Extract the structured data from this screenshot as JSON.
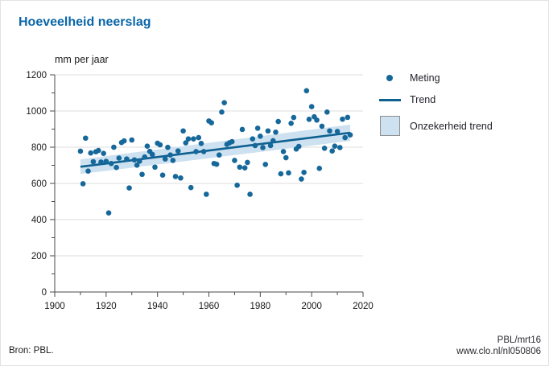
{
  "title": "Hoeveelheid neerslag",
  "legend": {
    "items": [
      {
        "label": "Meting",
        "marker": "dot"
      },
      {
        "label": "Trend",
        "marker": "line"
      },
      {
        "label": "Onzekerheid trend",
        "marker": "band"
      }
    ]
  },
  "footer": {
    "source": "Bron: PBL.",
    "credit_line1": "PBL/mrt16",
    "credit_line2": "www.clo.nl/nl050806"
  },
  "colors": {
    "title": "#0a66a8",
    "point": "#16689b",
    "trend": "#0e6091",
    "band": "#cde1f0",
    "grid": "#dcdcdc",
    "axis": "#4a4a4a",
    "tick_text": "#1a1a1a"
  },
  "chart_data": {
    "type": "scatter",
    "title": "Hoeveelheid neerslag",
    "ylabel": "mm per jaar",
    "xlim": [
      1900,
      2020
    ],
    "ylim": [
      0,
      1200
    ],
    "x_ticks": [
      1900,
      1920,
      1940,
      1960,
      1980,
      2000,
      2020
    ],
    "y_ticks": [
      0,
      200,
      400,
      600,
      800,
      1000,
      1200
    ],
    "x_minor_step": 10,
    "y_minor_step": 100,
    "grid": "horizontal",
    "legend_position": "right",
    "x": [
      1910,
      1911,
      1912,
      1913,
      1914,
      1915,
      1916,
      1917,
      1918,
      1919,
      1920,
      1921,
      1922,
      1923,
      1924,
      1925,
      1926,
      1927,
      1928,
      1929,
      1930,
      1931,
      1932,
      1933,
      1934,
      1935,
      1936,
      1937,
      1938,
      1939,
      1940,
      1941,
      1942,
      1943,
      1944,
      1945,
      1946,
      1947,
      1948,
      1949,
      1950,
      1951,
      1952,
      1953,
      1954,
      1955,
      1956,
      1957,
      1958,
      1959,
      1960,
      1961,
      1962,
      1963,
      1964,
      1965,
      1966,
      1967,
      1968,
      1969,
      1970,
      1971,
      1972,
      1973,
      1974,
      1975,
      1976,
      1977,
      1978,
      1979,
      1980,
      1981,
      1982,
      1983,
      1984,
      1985,
      1986,
      1987,
      1988,
      1989,
      1990,
      1991,
      1992,
      1993,
      1994,
      1995,
      1996,
      1997,
      1998,
      1999,
      2000,
      2001,
      2002,
      2003,
      2004,
      2005,
      2006,
      2007,
      2008,
      2009,
      2010,
      2011,
      2012,
      2013,
      2014,
      2015
    ],
    "series": [
      {
        "name": "Meting",
        "type": "scatter",
        "values": [
          778,
          598,
          850,
          668,
          768,
          720,
          775,
          782,
          718,
          766,
          722,
          437,
          710,
          800,
          688,
          740,
          826,
          835,
          735,
          575,
          840,
          730,
          701,
          723,
          650,
          746,
          806,
          777,
          760,
          690,
          822,
          813,
          646,
          735,
          799,
          757,
          727,
          638,
          779,
          630,
          890,
          824,
          846,
          577,
          846,
          776,
          853,
          821,
          776,
          540,
          945,
          935,
          710,
          706,
          757,
          994,
          1046,
          816,
          824,
          831,
          727,
          590,
          690,
          898,
          686,
          716,
          540,
          846,
          809,
          905,
          861,
          798,
          705,
          890,
          809,
          836,
          883,
          942,
          653,
          776,
          742,
          658,
          932,
          964,
          790,
          804,
          624,
          661,
          1112,
          954,
          1024,
          968,
          950,
          683,
          916,
          794,
          994,
          890,
          779,
          806,
          887,
          798,
          955,
          853,
          965,
          868
        ]
      },
      {
        "name": "Trend",
        "type": "line",
        "x": [
          1910,
          2015
        ],
        "values": [
          692,
          880
        ]
      },
      {
        "name": "Onzekerheid trend",
        "type": "band",
        "x": [
          1910,
          2015
        ],
        "upper": [
          733,
          925
        ],
        "lower": [
          652,
          835
        ]
      }
    ]
  }
}
